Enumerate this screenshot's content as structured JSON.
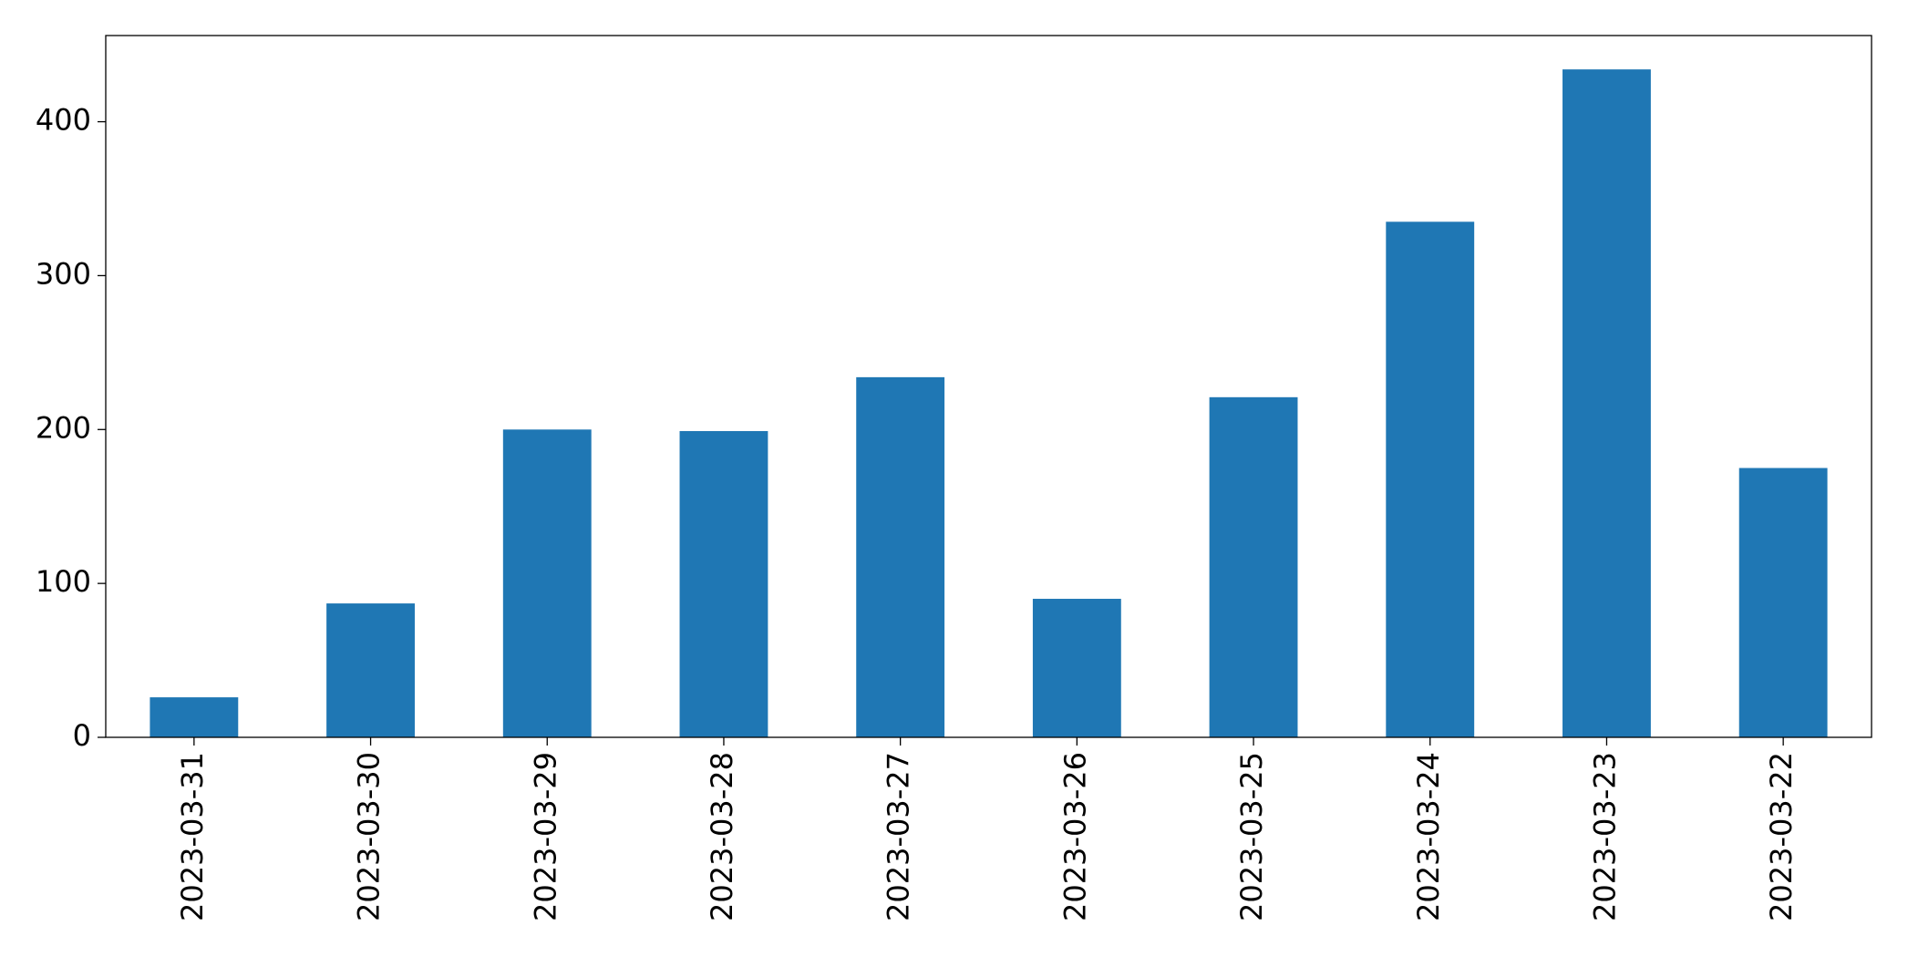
{
  "chart_data": {
    "type": "bar",
    "categories": [
      "2023-03-31",
      "2023-03-30",
      "2023-03-29",
      "2023-03-28",
      "2023-03-27",
      "2023-03-26",
      "2023-03-25",
      "2023-03-24",
      "2023-03-23",
      "2023-03-22"
    ],
    "values": [
      26,
      87,
      200,
      199,
      234,
      90,
      221,
      335,
      434,
      175
    ],
    "color": "#1f77b4",
    "ylim": [
      0,
      456
    ],
    "yticks": [
      0,
      100,
      200,
      300,
      400
    ],
    "grid": false
  }
}
